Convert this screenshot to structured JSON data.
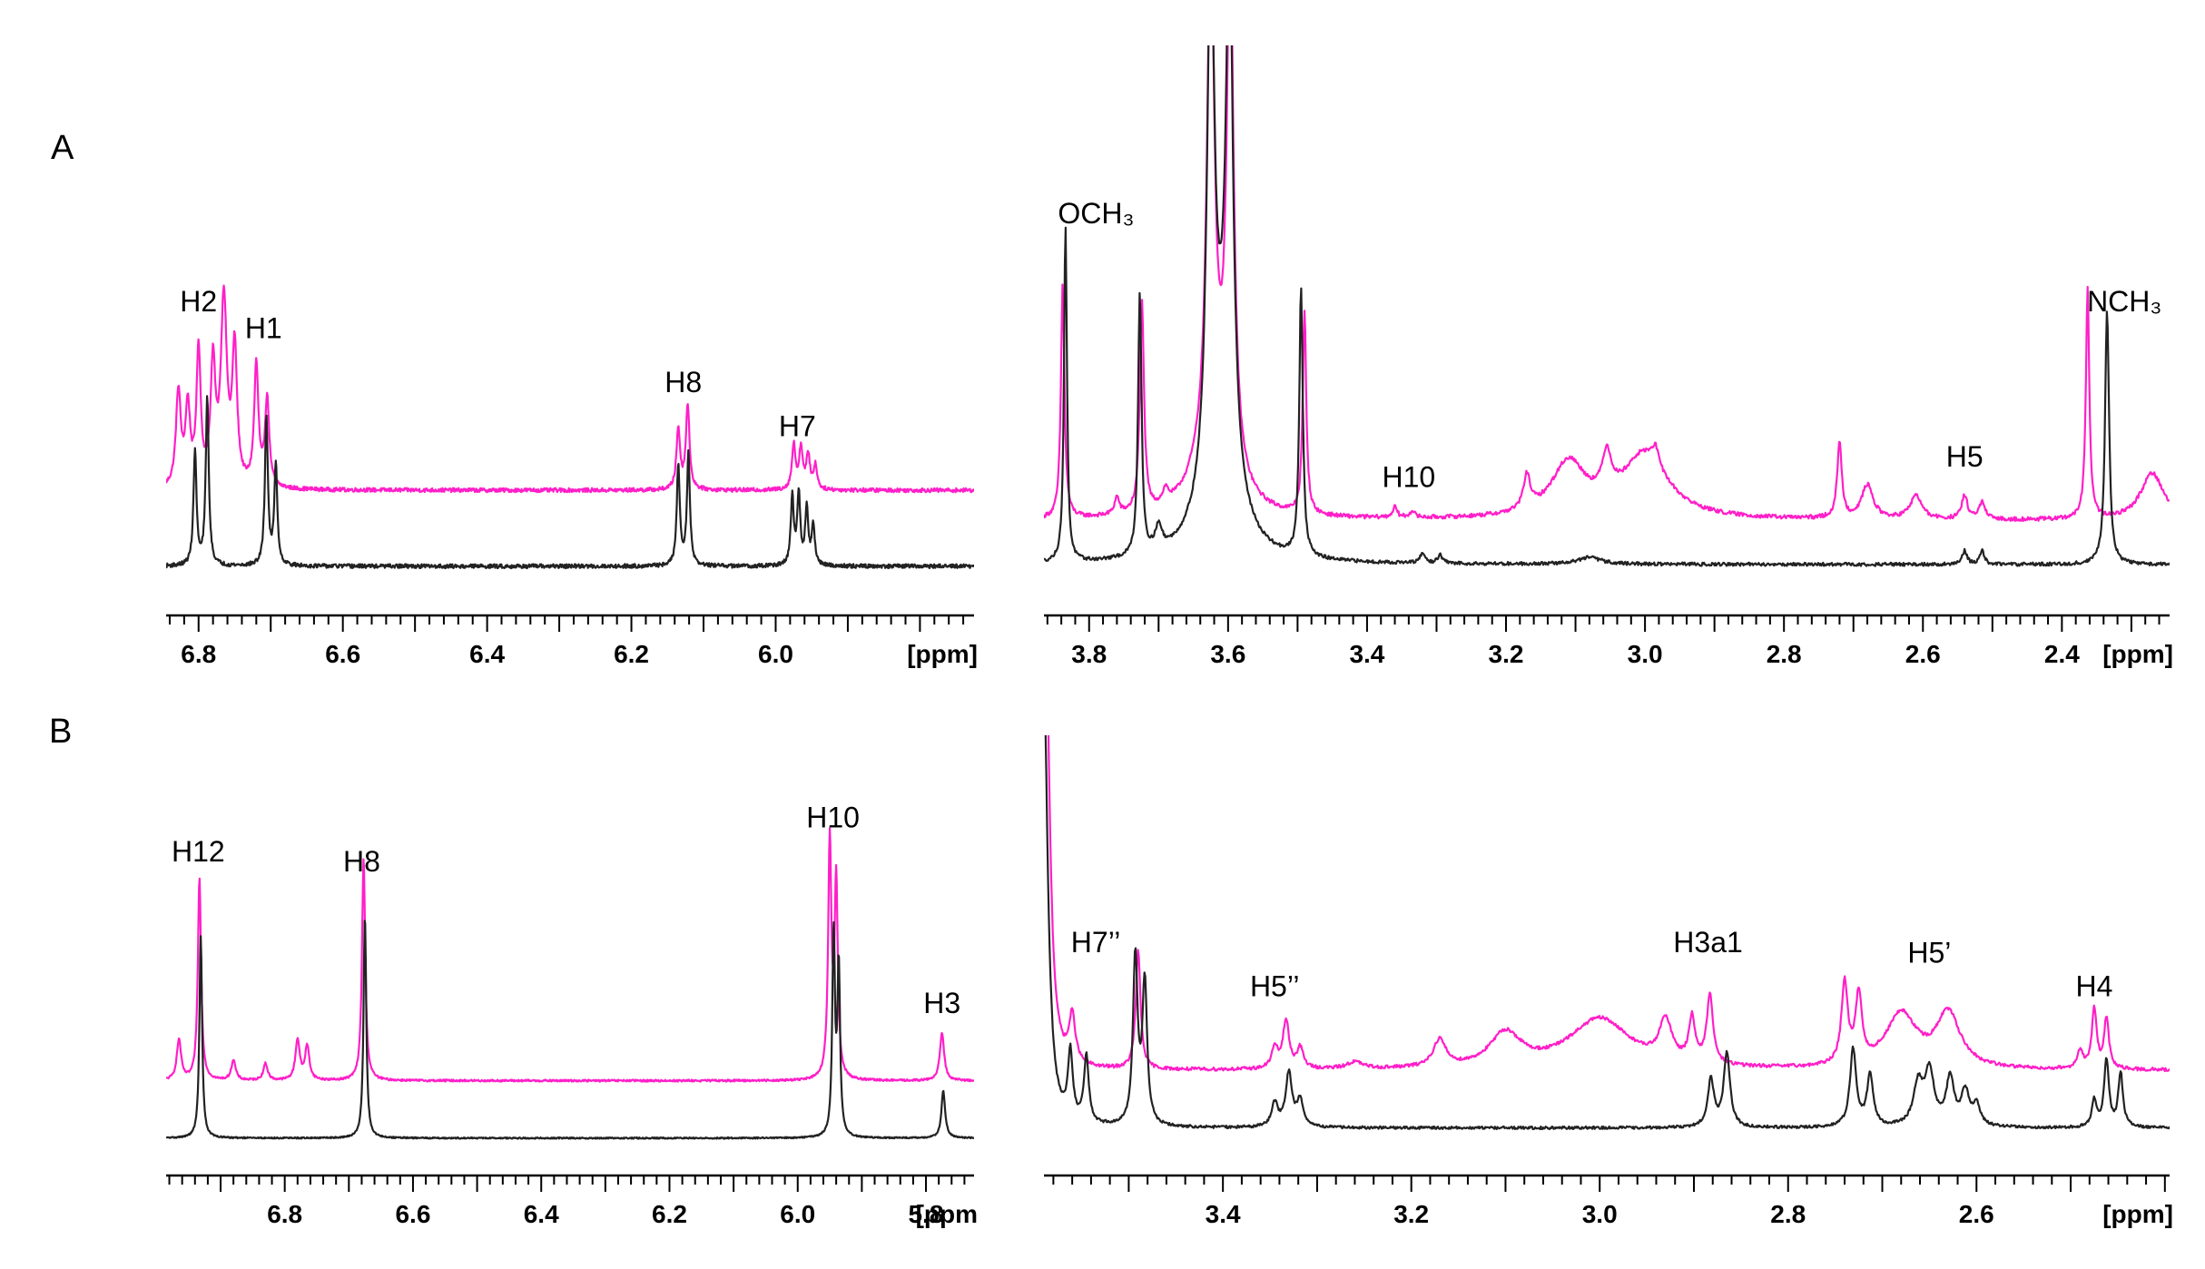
{
  "colors": {
    "magenta": "#ff1fc8",
    "black": "#222222"
  },
  "chart_data": [
    {
      "id": "A-left",
      "panel": "A",
      "type": "line",
      "xlim": [
        6.845,
        5.725
      ],
      "reversed": true,
      "ticks": [
        6.8,
        6.6,
        6.4,
        6.2,
        6.0
      ],
      "tick_labels": [
        "6.8",
        "6.6",
        "6.4",
        "6.2",
        "6.0"
      ],
      "unit_label": "[ppm]",
      "series": [
        {
          "color": "magenta",
          "baseline": 0.29,
          "noise": 0.006,
          "peaks": [
            [
              6.828,
              0.28,
              0.004
            ],
            [
              6.815,
              0.23,
              0.004
            ],
            [
              6.8,
              0.4,
              0.0035
            ],
            [
              6.78,
              0.35,
              0.004
            ],
            [
              6.765,
              0.55,
              0.005
            ],
            [
              6.75,
              0.4,
              0.004
            ],
            [
              6.72,
              0.36,
              0.0035
            ],
            [
              6.705,
              0.26,
              0.0035
            ],
            [
              6.135,
              0.18,
              0.003
            ],
            [
              6.122,
              0.25,
              0.003
            ],
            [
              5.975,
              0.13,
              0.003
            ],
            [
              5.965,
              0.12,
              0.003
            ],
            [
              5.955,
              0.1,
              0.003
            ],
            [
              5.945,
              0.07,
              0.003
            ]
          ]
        },
        {
          "color": "black",
          "baseline": 0.065,
          "noise": 0.006,
          "peaks": [
            [
              6.805,
              0.34,
              0.0025
            ],
            [
              6.788,
              0.5,
              0.0025
            ],
            [
              6.706,
              0.44,
              0.0025
            ],
            [
              6.693,
              0.3,
              0.0025
            ],
            [
              6.135,
              0.3,
              0.0025
            ],
            [
              6.121,
              0.33,
              0.0025
            ],
            [
              5.977,
              0.2,
              0.0025
            ],
            [
              5.968,
              0.21,
              0.0025
            ],
            [
              5.957,
              0.17,
              0.0025
            ],
            [
              5.948,
              0.12,
              0.0025
            ]
          ]
        }
      ],
      "annotations": [
        {
          "text": "H2",
          "ppm": 6.8,
          "level": 0.82
        },
        {
          "text": "H1",
          "ppm": 6.71,
          "level": 0.74
        },
        {
          "text": "H8",
          "ppm": 6.128,
          "level": 0.58
        },
        {
          "text": "H7",
          "ppm": 5.97,
          "level": 0.45
        }
      ]
    },
    {
      "id": "A-right",
      "panel": "A",
      "type": "line",
      "xlim": [
        3.865,
        2.245
      ],
      "reversed": true,
      "ticks": [
        3.8,
        3.6,
        3.4,
        3.2,
        3.0,
        2.8,
        2.6,
        2.4
      ],
      "tick_labels": [
        "3.8",
        "3.6",
        "3.4",
        "3.2",
        "3.0",
        "2.8",
        "2.6",
        "2.4"
      ],
      "unit_label": "[ppm]",
      "series": [
        {
          "color": "magenta",
          "baseline": 0.2,
          "noise": 0.006,
          "peaks": [
            [
              3.838,
              0.7,
              0.003
            ],
            [
              3.76,
              0.05,
              0.004
            ],
            [
              3.724,
              0.63,
              0.0035
            ],
            [
              3.69,
              0.04,
              0.005
            ],
            [
              3.625,
              1.5,
              0.006
            ],
            [
              3.597,
              1.5,
              0.006
            ],
            [
              3.62,
              0.25,
              0.03
            ],
            [
              3.49,
              0.6,
              0.003
            ],
            [
              3.36,
              0.03,
              0.004
            ],
            [
              3.335,
              0.02,
              0.004
            ],
            [
              3.17,
              0.1,
              0.006
            ],
            [
              3.11,
              0.16,
              0.03
            ],
            [
              3.0,
              0.19,
              0.04
            ],
            [
              3.055,
              0.12,
              0.008
            ],
            [
              2.985,
              0.05,
              0.005
            ],
            [
              2.72,
              0.22,
              0.004
            ],
            [
              2.68,
              0.1,
              0.01
            ],
            [
              2.61,
              0.07,
              0.01
            ],
            [
              2.54,
              0.07,
              0.005
            ],
            [
              2.515,
              0.05,
              0.005
            ],
            [
              2.363,
              0.68,
              0.003
            ],
            [
              2.27,
              0.14,
              0.02
            ]
          ]
        },
        {
          "color": "black",
          "baseline": 0.07,
          "noise": 0.005,
          "peaks": [
            [
              3.834,
              1.0,
              0.0025
            ],
            [
              3.727,
              0.78,
              0.003
            ],
            [
              3.7,
              0.07,
              0.006
            ],
            [
              3.625,
              1.5,
              0.006
            ],
            [
              3.598,
              1.5,
              0.006
            ],
            [
              3.612,
              0.45,
              0.025
            ],
            [
              3.495,
              0.8,
              0.003
            ],
            [
              3.32,
              0.03,
              0.004
            ],
            [
              3.295,
              0.025,
              0.004
            ],
            [
              3.08,
              0.02,
              0.02
            ],
            [
              2.54,
              0.04,
              0.004
            ],
            [
              2.515,
              0.04,
              0.004
            ],
            [
              2.335,
              0.75,
              0.0035
            ]
          ]
        }
      ],
      "annotations": [
        {
          "text": "OCH₃",
          "ppm": 3.79,
          "level": 1.08
        },
        {
          "text": "H10",
          "ppm": 3.34,
          "level": 0.3
        },
        {
          "text": "H5",
          "ppm": 2.54,
          "level": 0.36
        },
        {
          "text": "NCH₃",
          "ppm": 2.31,
          "level": 0.82
        }
      ]
    },
    {
      "id": "B-left",
      "panel": "B",
      "type": "line",
      "xlim": [
        6.985,
        5.725
      ],
      "reversed": true,
      "ticks": [
        6.8,
        6.6,
        6.4,
        6.2,
        6.0,
        5.8
      ],
      "tick_labels": [
        "6.8",
        "6.6",
        "6.4",
        "6.2",
        "6.0",
        "5.8"
      ],
      "unit_label": "[ppm",
      "series": [
        {
          "color": "magenta",
          "baseline": 0.2,
          "noise": 0.003,
          "peaks": [
            [
              6.965,
              0.12,
              0.004
            ],
            [
              6.933,
              0.6,
              0.003
            ],
            [
              6.88,
              0.06,
              0.004
            ],
            [
              6.83,
              0.05,
              0.004
            ],
            [
              6.78,
              0.12,
              0.004
            ],
            [
              6.765,
              0.1,
              0.004
            ],
            [
              6.677,
              0.66,
              0.003
            ],
            [
              5.95,
              0.7,
              0.003
            ],
            [
              5.94,
              0.58,
              0.003
            ],
            [
              5.775,
              0.14,
              0.004
            ]
          ]
        },
        {
          "color": "black",
          "baseline": 0.03,
          "noise": 0.002,
          "peaks": [
            [
              6.931,
              0.6,
              0.0025
            ],
            [
              6.675,
              0.66,
              0.0025
            ],
            [
              5.944,
              0.6,
              0.0025
            ],
            [
              5.936,
              0.5,
              0.0025
            ],
            [
              5.773,
              0.14,
              0.0035
            ]
          ]
        }
      ],
      "annotations": [
        {
          "text": "H12",
          "ppm": 6.935,
          "level": 0.85
        },
        {
          "text": "H8",
          "ppm": 6.68,
          "level": 0.82
        },
        {
          "text": "H10",
          "ppm": 5.945,
          "level": 0.95
        },
        {
          "text": "H3",
          "ppm": 5.775,
          "level": 0.4
        }
      ]
    },
    {
      "id": "B-right",
      "panel": "B",
      "type": "line",
      "xlim": [
        3.59,
        2.395
      ],
      "reversed": true,
      "ticks": [
        3.4,
        3.2,
        3.0,
        2.8,
        2.6
      ],
      "tick_labels": [
        "3.4",
        "3.2",
        "3.0",
        "2.8",
        "2.6"
      ],
      "unit_label": "[ppm]",
      "series": [
        {
          "color": "magenta",
          "baseline": 0.23,
          "noise": 0.005,
          "peaks": [
            [
              3.588,
              1.3,
              0.005
            ],
            [
              3.56,
              0.14,
              0.004
            ],
            [
              3.49,
              0.35,
              0.003
            ],
            [
              3.345,
              0.06,
              0.004
            ],
            [
              3.333,
              0.14,
              0.004
            ],
            [
              3.318,
              0.06,
              0.004
            ],
            [
              3.26,
              0.02,
              0.01
            ],
            [
              3.17,
              0.08,
              0.008
            ],
            [
              3.1,
              0.1,
              0.02
            ],
            [
              3.0,
              0.15,
              0.04
            ],
            [
              2.93,
              0.12,
              0.008
            ],
            [
              2.902,
              0.13,
              0.004
            ],
            [
              2.883,
              0.2,
              0.004
            ],
            [
              2.74,
              0.24,
              0.004
            ],
            [
              2.725,
              0.2,
              0.004
            ],
            [
              2.68,
              0.16,
              0.02
            ],
            [
              2.63,
              0.16,
              0.015
            ],
            [
              2.49,
              0.05,
              0.004
            ],
            [
              2.475,
              0.18,
              0.003
            ],
            [
              2.462,
              0.15,
              0.003
            ]
          ]
        },
        {
          "color": "black",
          "baseline": 0.06,
          "noise": 0.004,
          "peaks": [
            [
              3.59,
              1.3,
              0.005
            ],
            [
              3.562,
              0.2,
              0.003
            ],
            [
              3.545,
              0.2,
              0.003
            ],
            [
              3.493,
              0.5,
              0.003
            ],
            [
              3.483,
              0.42,
              0.003
            ],
            [
              3.345,
              0.07,
              0.004
            ],
            [
              3.33,
              0.16,
              0.004
            ],
            [
              3.318,
              0.08,
              0.004
            ],
            [
              2.882,
              0.14,
              0.004
            ],
            [
              2.865,
              0.22,
              0.004
            ],
            [
              2.731,
              0.23,
              0.004
            ],
            [
              2.713,
              0.15,
              0.004
            ],
            [
              2.662,
              0.12,
              0.006
            ],
            [
              2.65,
              0.16,
              0.006
            ],
            [
              2.628,
              0.14,
              0.005
            ],
            [
              2.612,
              0.1,
              0.005
            ],
            [
              2.6,
              0.06,
              0.005
            ],
            [
              2.475,
              0.08,
              0.003
            ],
            [
              2.462,
              0.2,
              0.003
            ],
            [
              2.447,
              0.16,
              0.003
            ]
          ]
        }
      ],
      "annotations": [
        {
          "text": "H7’’",
          "ppm": 3.535,
          "level": 0.58
        },
        {
          "text": "H5’’",
          "ppm": 3.345,
          "level": 0.45
        },
        {
          "text": "H3a1",
          "ppm": 2.885,
          "level": 0.58
        },
        {
          "text": "H5’",
          "ppm": 2.65,
          "level": 0.55
        },
        {
          "text": "H4",
          "ppm": 2.475,
          "level": 0.45
        }
      ]
    }
  ],
  "panels": {
    "a": "A",
    "b": "B"
  }
}
